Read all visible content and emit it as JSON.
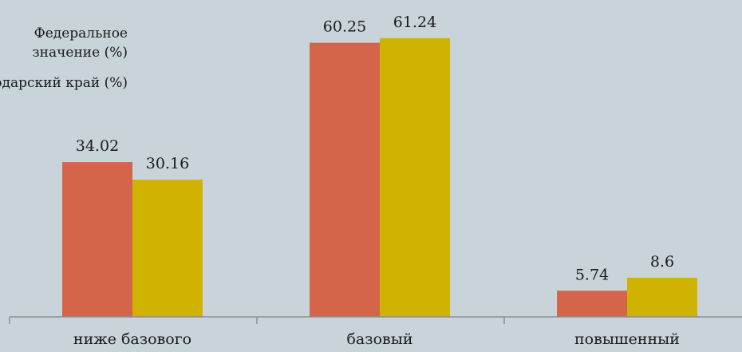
{
  "chart_data": {
    "type": "bar",
    "categories": [
      "ниже базового",
      "базовый",
      "повышенный"
    ],
    "series": [
      {
        "name": "Федеральное значение (%)",
        "values": [
          34.02,
          60.25,
          5.74
        ]
      },
      {
        "name": "Краснодарский край (%)",
        "values": [
          30.16,
          61.24,
          8.6
        ]
      }
    ],
    "colors": [
      "#d4644a",
      "#cfb300"
    ],
    "value_labels": [
      "34.02",
      "30.16",
      "60.25",
      "61.24",
      "5.74",
      "8.6"
    ],
    "ylim": [
      0,
      70
    ],
    "grid": false,
    "legend_placement": "top-left"
  },
  "legend": {
    "line1": "Федеральное",
    "line2": "значение (%)",
    "line3": "Краснодарский край (%)"
  }
}
